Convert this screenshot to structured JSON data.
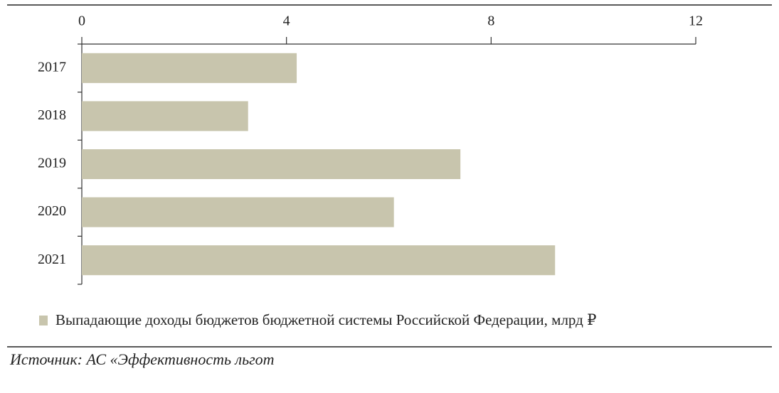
{
  "chart_data": {
    "type": "hbar",
    "categories": [
      "2017",
      "2018",
      "2019",
      "2020",
      "2021"
    ],
    "series": [
      {
        "name": "Выпадающие доходы бюджетов бюджетной системы Российской Федерации, млрд ₽",
        "color": "#c8c5ad",
        "values": [
          4.2,
          3.25,
          7.4,
          6.1,
          9.25
        ]
      }
    ],
    "xlim": [
      0,
      12
    ],
    "xticks": [
      0,
      4,
      8,
      12
    ],
    "source": "Источник: АС «Эффективность льгот"
  }
}
